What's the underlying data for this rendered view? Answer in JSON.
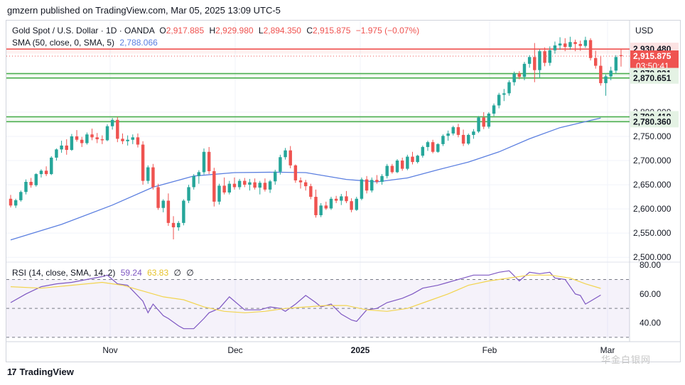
{
  "header": {
    "published_by": "gmzern published on TradingView.com, Mar 05, 2025 13:09 UTC-5"
  },
  "legend": {
    "symbol": "Gold Spot / U.S. Dollar · 1D · OANDA",
    "o_label": "O",
    "o_value": "2,917.885",
    "h_label": "H",
    "h_value": "2,929.980",
    "l_label": "L",
    "l_value": "2,894.350",
    "c_label": "C",
    "c_value": "2,915.875",
    "change": "−1.975 (−0.07%)",
    "sma_label": "SMA (50, close, 0, SMA, 5)",
    "sma_value": "2,788.066",
    "rsi_label": "RSI (14, close, SMA, 14, 2)",
    "rsi_value": "59.24",
    "rsi_ma_value": "63.83",
    "rsi_extra1": "∅",
    "rsi_extra2": "∅"
  },
  "footer": {
    "brand": "TradingView",
    "watermark": "华金白银网"
  },
  "colors": {
    "up": "#26a69a",
    "down": "#ef5350",
    "sma": "#5b7fe0",
    "rsi": "#7e57c2",
    "rsi_ma": "#f2d44e",
    "support": "#4caf50",
    "resistance": "#ef5350"
  },
  "chart_data": [
    {
      "type": "candlestick",
      "currency": "USD",
      "x_ticks": [
        "Nov",
        "Dec",
        "2025",
        "Feb",
        "Mar"
      ],
      "y_ticks": [
        2500,
        2550,
        2600,
        2650,
        2700,
        2750,
        2800
      ],
      "y_tick_labels": [
        "2,500.000",
        "2,550.000",
        "2,600.000",
        "2,650.000",
        "2,700.000",
        "2,750.000",
        "2,800.000"
      ],
      "ylim": [
        2490,
        2960
      ],
      "grid": true,
      "price_tags": [
        {
          "value": 2930.48,
          "label": "2,930.480",
          "kind": "resistance"
        },
        {
          "value": 2915.875,
          "label": "2,915.875",
          "kind": "last",
          "countdown": "03:50:41"
        },
        {
          "value": 2879.831,
          "label": "2,879.831",
          "kind": "support"
        },
        {
          "value": 2870.651,
          "label": "2,870.651",
          "kind": "support"
        },
        {
          "value": 2790.419,
          "label": "2,790.419",
          "kind": "support"
        },
        {
          "value": 2780.36,
          "label": "2,780.360",
          "kind": "support"
        }
      ],
      "ohlc": [
        [
          2621,
          2629,
          2603,
          2607
        ],
        [
          2607,
          2621,
          2602,
          2618
        ],
        [
          2618,
          2638,
          2615,
          2635
        ],
        [
          2635,
          2661,
          2630,
          2656
        ],
        [
          2656,
          2664,
          2644,
          2649
        ],
        [
          2649,
          2674,
          2646,
          2672
        ],
        [
          2672,
          2682,
          2665,
          2679
        ],
        [
          2679,
          2688,
          2668,
          2672
        ],
        [
          2672,
          2709,
          2670,
          2706
        ],
        [
          2706,
          2725,
          2700,
          2723
        ],
        [
          2723,
          2741,
          2716,
          2731
        ],
        [
          2731,
          2744,
          2712,
          2722
        ],
        [
          2722,
          2755,
          2720,
          2750
        ],
        [
          2750,
          2763,
          2739,
          2743
        ],
        [
          2743,
          2749,
          2728,
          2736
        ],
        [
          2736,
          2758,
          2733,
          2754
        ],
        [
          2754,
          2766,
          2742,
          2748
        ],
        [
          2748,
          2757,
          2736,
          2744
        ],
        [
          2744,
          2752,
          2734,
          2742
        ],
        [
          2742,
          2775,
          2740,
          2771
        ],
        [
          2771,
          2788,
          2764,
          2784
        ],
        [
          2784,
          2790,
          2738,
          2745
        ],
        [
          2745,
          2756,
          2734,
          2740
        ],
        [
          2740,
          2752,
          2731,
          2743
        ],
        [
          2743,
          2754,
          2734,
          2748
        ],
        [
          2748,
          2756,
          2727,
          2733
        ],
        [
          2733,
          2740,
          2650,
          2658
        ],
        [
          2658,
          2690,
          2652,
          2686
        ],
        [
          2686,
          2693,
          2640,
          2645
        ],
        [
          2645,
          2652,
          2598,
          2602
        ],
        [
          2602,
          2620,
          2593,
          2617
        ],
        [
          2617,
          2632,
          2565,
          2571
        ],
        [
          2571,
          2585,
          2537,
          2562
        ],
        [
          2562,
          2575,
          2555,
          2571
        ],
        [
          2571,
          2620,
          2566,
          2617
        ],
        [
          2617,
          2650,
          2612,
          2645
        ],
        [
          2645,
          2672,
          2640,
          2668
        ],
        [
          2668,
          2680,
          2652,
          2676
        ],
        [
          2676,
          2725,
          2671,
          2718
        ],
        [
          2718,
          2728,
          2672,
          2678
        ],
        [
          2678,
          2685,
          2605,
          2615
        ],
        [
          2615,
          2652,
          2609,
          2648
        ],
        [
          2648,
          2665,
          2630,
          2634
        ],
        [
          2634,
          2658,
          2630,
          2652
        ],
        [
          2652,
          2665,
          2640,
          2645
        ],
        [
          2645,
          2662,
          2640,
          2658
        ],
        [
          2658,
          2664,
          2645,
          2650
        ],
        [
          2650,
          2662,
          2638,
          2655
        ],
        [
          2655,
          2663,
          2640,
          2644
        ],
        [
          2644,
          2658,
          2630,
          2654
        ],
        [
          2654,
          2663,
          2636,
          2640
        ],
        [
          2640,
          2660,
          2633,
          2657
        ],
        [
          2657,
          2681,
          2650,
          2677
        ],
        [
          2677,
          2712,
          2671,
          2707
        ],
        [
          2707,
          2726,
          2702,
          2721
        ],
        [
          2721,
          2730,
          2684,
          2690
        ],
        [
          2690,
          2692,
          2654,
          2659
        ],
        [
          2659,
          2665,
          2642,
          2655
        ],
        [
          2655,
          2660,
          2638,
          2647
        ],
        [
          2647,
          2652,
          2620,
          2625
        ],
        [
          2625,
          2640,
          2582,
          2587
        ],
        [
          2587,
          2612,
          2583,
          2607
        ],
        [
          2607,
          2615,
          2598,
          2601
        ],
        [
          2601,
          2625,
          2598,
          2621
        ],
        [
          2621,
          2627,
          2612,
          2617
        ],
        [
          2617,
          2631,
          2608,
          2626
        ],
        [
          2626,
          2637,
          2612,
          2616
        ],
        [
          2616,
          2622,
          2593,
          2598
        ],
        [
          2598,
          2625,
          2596,
          2621
        ],
        [
          2621,
          2665,
          2618,
          2661
        ],
        [
          2661,
          2668,
          2632,
          2638
        ],
        [
          2638,
          2665,
          2634,
          2660
        ],
        [
          2660,
          2670,
          2652,
          2656
        ],
        [
          2656,
          2672,
          2650,
          2668
        ],
        [
          2668,
          2693,
          2663,
          2689
        ],
        [
          2689,
          2693,
          2673,
          2676
        ],
        [
          2676,
          2703,
          2674,
          2700
        ],
        [
          2700,
          2706,
          2679,
          2683
        ],
        [
          2683,
          2712,
          2680,
          2708
        ],
        [
          2708,
          2718,
          2692,
          2697
        ],
        [
          2697,
          2712,
          2694,
          2710
        ],
        [
          2710,
          2731,
          2706,
          2728
        ],
        [
          2728,
          2741,
          2720,
          2738
        ],
        [
          2738,
          2743,
          2715,
          2718
        ],
        [
          2718,
          2736,
          2716,
          2734
        ],
        [
          2734,
          2754,
          2730,
          2751
        ],
        [
          2751,
          2762,
          2741,
          2756
        ],
        [
          2756,
          2772,
          2752,
          2769
        ],
        [
          2769,
          2776,
          2748,
          2753
        ],
        [
          2753,
          2764,
          2730,
          2735
        ],
        [
          2735,
          2756,
          2732,
          2753
        ],
        [
          2753,
          2765,
          2745,
          2760
        ],
        [
          2760,
          2792,
          2757,
          2789
        ],
        [
          2789,
          2800,
          2765,
          2770
        ],
        [
          2770,
          2800,
          2766,
          2797
        ],
        [
          2797,
          2818,
          2792,
          2814
        ],
        [
          2814,
          2840,
          2808,
          2836
        ],
        [
          2836,
          2848,
          2823,
          2839
        ],
        [
          2839,
          2866,
          2834,
          2862
        ],
        [
          2862,
          2884,
          2855,
          2880
        ],
        [
          2880,
          2885,
          2868,
          2873
        ],
        [
          2873,
          2904,
          2866,
          2900
        ],
        [
          2900,
          2918,
          2892,
          2914
        ],
        [
          2914,
          2943,
          2862,
          2887
        ],
        [
          2887,
          2930,
          2872,
          2926
        ],
        [
          2926,
          2934,
          2895,
          2902
        ],
        [
          2902,
          2936,
          2896,
          2928
        ],
        [
          2928,
          2946,
          2921,
          2938
        ],
        [
          2938,
          2955,
          2929,
          2942
        ],
        [
          2942,
          2953,
          2926,
          2935
        ],
        [
          2935,
          2956,
          2929,
          2945
        ],
        [
          2945,
          2950,
          2926,
          2941
        ],
        [
          2941,
          2948,
          2927,
          2937
        ],
        [
          2937,
          2956,
          2933,
          2949
        ],
        [
          2949,
          2953,
          2907,
          2912
        ],
        [
          2912,
          2927,
          2890,
          2896
        ],
        [
          2896,
          2915,
          2855,
          2860
        ],
        [
          2860,
          2878,
          2834,
          2874
        ],
        [
          2874,
          2894,
          2866,
          2886
        ],
        [
          2886,
          2918,
          2880,
          2914
        ],
        [
          2917.885,
          2929.98,
          2894.35,
          2915.875
        ]
      ],
      "sma50": [
        [
          0,
          2536
        ],
        [
          10,
          2568
        ],
        [
          20,
          2608
        ],
        [
          28,
          2645
        ],
        [
          36,
          2668
        ],
        [
          44,
          2675
        ],
        [
          52,
          2676
        ],
        [
          58,
          2675
        ],
        [
          66,
          2661
        ],
        [
          72,
          2656
        ],
        [
          78,
          2664
        ],
        [
          84,
          2681
        ],
        [
          90,
          2697
        ],
        [
          96,
          2718
        ],
        [
          102,
          2745
        ],
        [
          108,
          2768
        ],
        [
          116,
          2788.066
        ]
      ]
    },
    {
      "type": "line",
      "title": "RSI (14, close, SMA, 14, 2)",
      "y_ticks": [
        40,
        60,
        80
      ],
      "ylim": [
        28,
        82
      ],
      "band": [
        30,
        70
      ],
      "midline": 50,
      "series": [
        {
          "name": "RSI",
          "x": [
            0,
            3,
            6,
            9,
            12,
            15,
            18,
            19,
            21,
            23,
            26,
            27,
            28,
            30,
            31,
            33,
            34,
            36,
            38,
            39,
            41,
            43,
            46,
            49,
            51,
            53,
            54,
            56,
            58,
            60,
            61,
            63,
            65,
            67,
            68,
            70,
            72,
            74,
            77,
            79,
            81,
            84,
            86,
            88,
            89,
            91,
            94,
            96,
            98,
            100,
            102,
            104,
            106,
            107,
            109,
            111,
            112,
            113,
            114,
            116
          ],
          "values": [
            54,
            60,
            65,
            67,
            68,
            70,
            72,
            73,
            67,
            66,
            55,
            47,
            53,
            45,
            43,
            38,
            36,
            36,
            43,
            47,
            50,
            58,
            49,
            49,
            51,
            50,
            48,
            53,
            59,
            54,
            51,
            53,
            46,
            42,
            41,
            49,
            50,
            54,
            57,
            60,
            64,
            66,
            68,
            70,
            71,
            73,
            73,
            75,
            76,
            69,
            75,
            74,
            75,
            71,
            70,
            60,
            59,
            53,
            55,
            59.24
          ]
        },
        {
          "name": "RSI-based MA",
          "x": [
            0,
            6,
            12,
            18,
            22,
            26,
            30,
            34,
            38,
            42,
            46,
            50,
            54,
            58,
            62,
            66,
            70,
            74,
            78,
            82,
            86,
            90,
            94,
            98,
            102,
            106,
            110,
            113,
            116
          ],
          "values": [
            65,
            64,
            66,
            68,
            66,
            62,
            58,
            56,
            51,
            48,
            47,
            48,
            50,
            51,
            52,
            52,
            49,
            48,
            50,
            55,
            60,
            66,
            69,
            71,
            73,
            73,
            71,
            67,
            63.83
          ]
        }
      ]
    }
  ]
}
